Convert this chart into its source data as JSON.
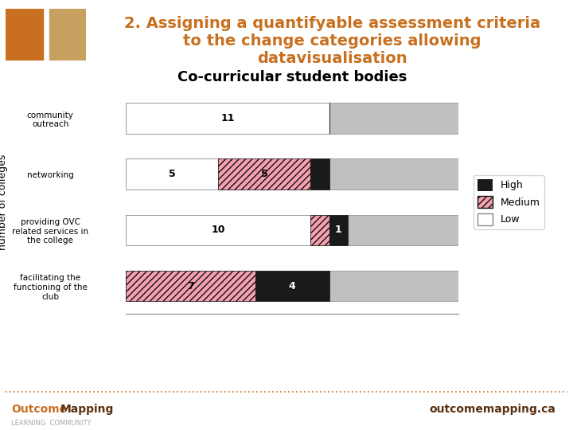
{
  "title": "2. Assigning a quantifyable assessment criteria\nto the change categories allowing\ndatavisualisation",
  "chart_title": "Co-curricular student bodies",
  "ylabel": "number of colleges",
  "categories": [
    "facilitating the\nfunctioning of the\nclub",
    "providing OVC\nrelated services in\nthe college",
    "networking",
    "community\noutreach"
  ],
  "high_values": [
    4,
    1,
    1,
    0
  ],
  "medium_values": [
    7,
    1,
    5,
    0
  ],
  "low_values": [
    0,
    10,
    5,
    11
  ],
  "gray_total": [
    18,
    18,
    18,
    18
  ],
  "high_color": "#1a1a1a",
  "medium_color": "#f4a0b0",
  "medium_hatch": "////",
  "low_color": "#ffffff",
  "gray_color": "#c0c0c0",
  "title_color": "#c87020",
  "chart_title_fontsize": 13,
  "title_fontsize": 14,
  "bar_labels_high": [
    "4",
    "1",
    "",
    ""
  ],
  "bar_labels_medium": [
    "7",
    "",
    "5",
    ""
  ],
  "bar_labels_low": [
    "",
    "10",
    "5",
    "11"
  ],
  "background_color": "#ffffff",
  "footer_line_color": "#c87020",
  "footer_text_right": "outcomemapping.ca"
}
